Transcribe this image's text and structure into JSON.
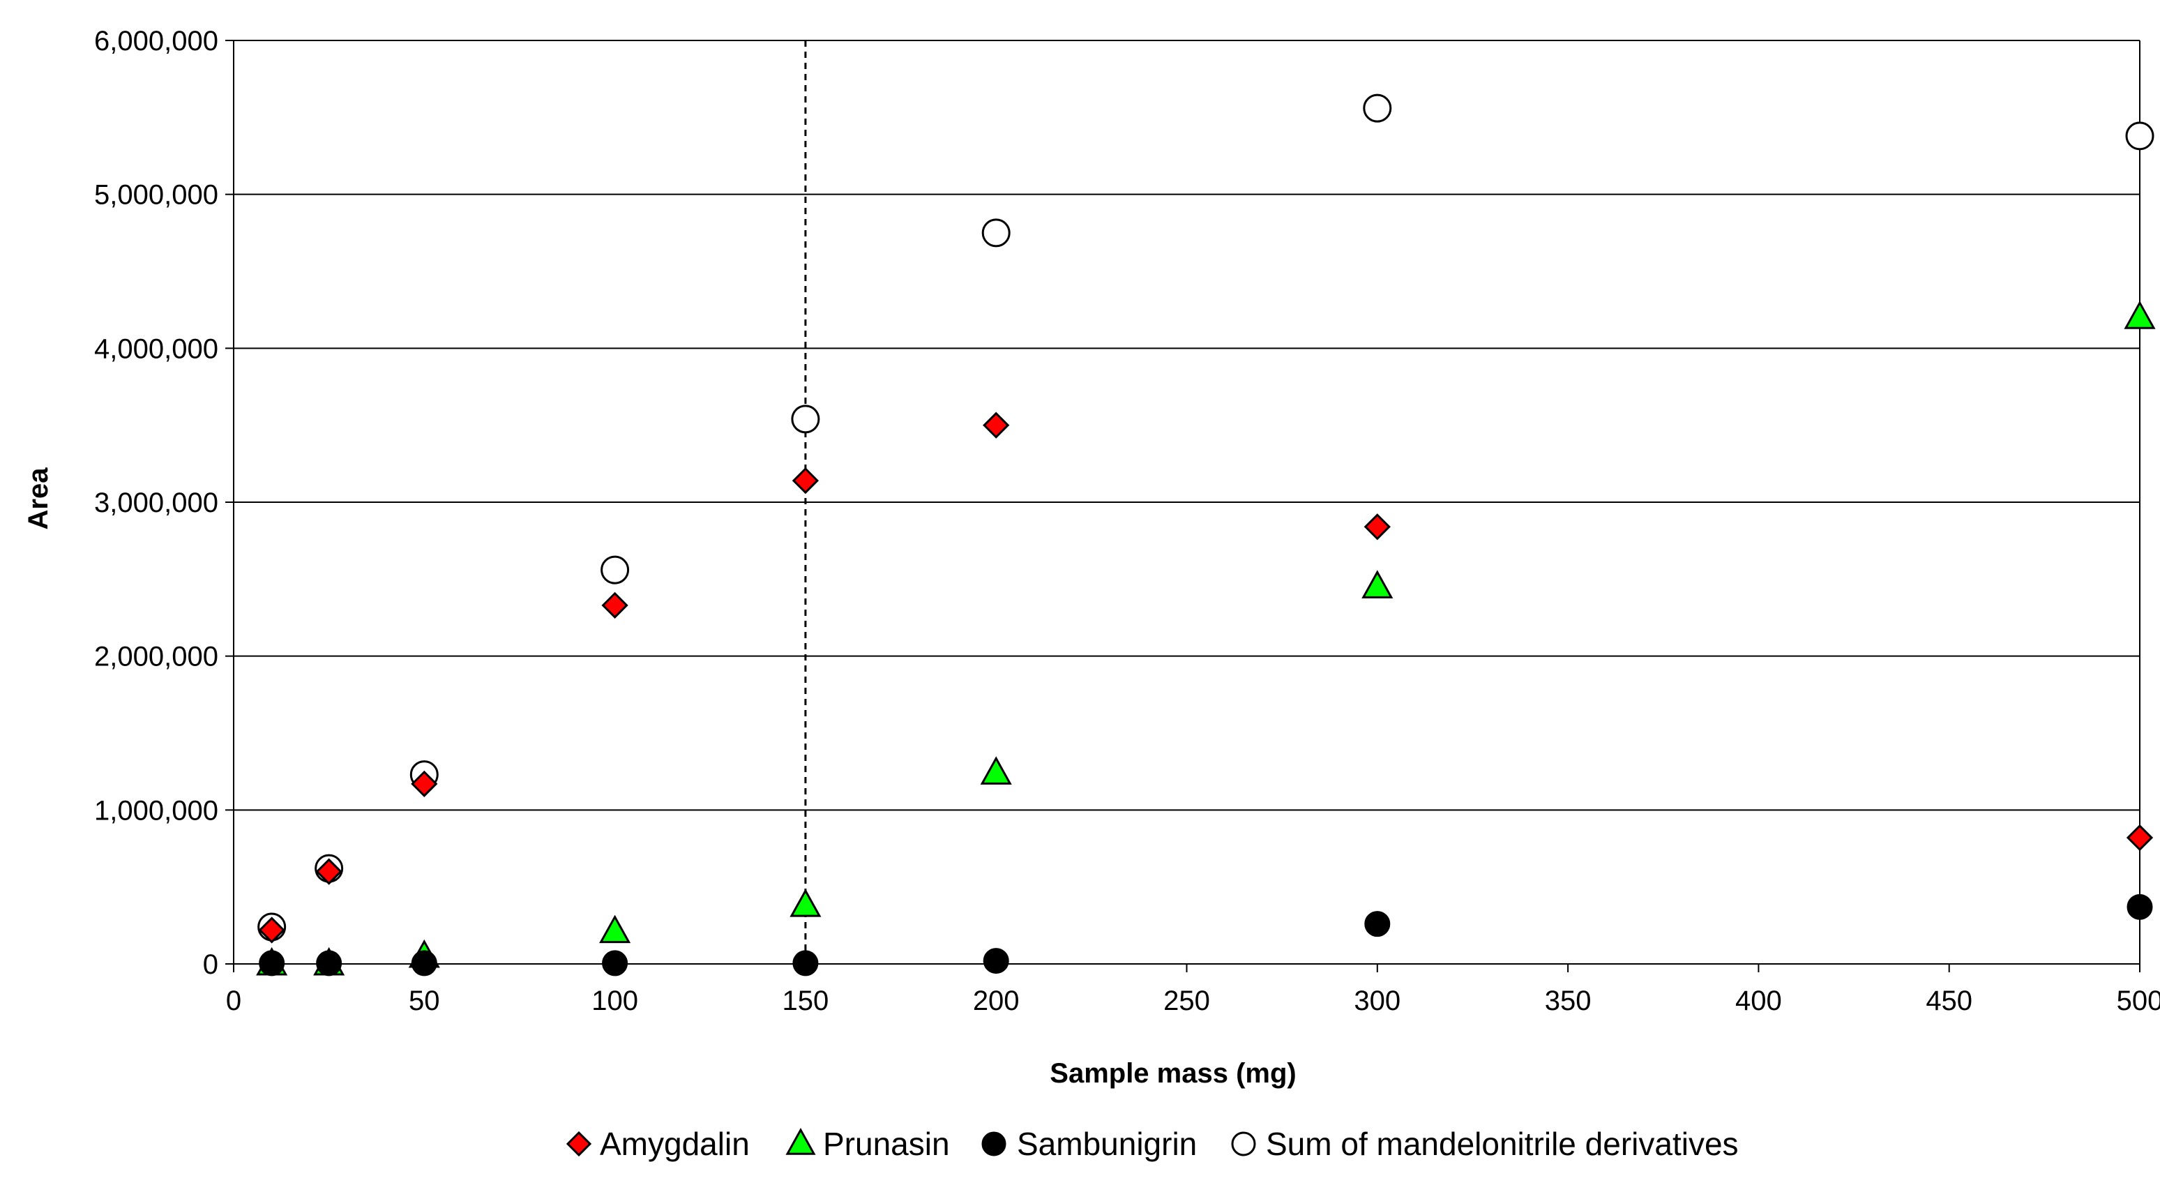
{
  "chart_data": {
    "type": "scatter",
    "title": "",
    "xlabel": "Sample mass (mg)",
    "ylabel": "Area",
    "xlim": [
      0,
      500
    ],
    "ylim": [
      0,
      6000000
    ],
    "x_ticks": [
      0,
      50,
      100,
      150,
      200,
      250,
      300,
      350,
      400,
      450,
      500
    ],
    "y_ticks": [
      0,
      1000000,
      2000000,
      3000000,
      4000000,
      5000000,
      6000000
    ],
    "x_tick_labels": [
      "0",
      "50",
      "100",
      "150",
      "200",
      "250",
      "300",
      "350",
      "400",
      "450",
      "500"
    ],
    "y_tick_labels": [
      "0",
      "1,000,000",
      "2,000,000",
      "3,000,000",
      "4,000,000",
      "5,000,000",
      "6,000,000"
    ],
    "grid": "horizontal",
    "reference_line_x": 150,
    "legend_position": "bottom",
    "series": [
      {
        "name": "Amygdalin",
        "marker": "diamond",
        "color": "#ff0000",
        "x": [
          10,
          25,
          50,
          100,
          150,
          200,
          300,
          500
        ],
        "y": [
          220000,
          600000,
          1170000,
          2330000,
          3140000,
          3500000,
          2840000,
          820000
        ]
      },
      {
        "name": "Prunasin",
        "marker": "triangle",
        "color": "#00ff00",
        "x": [
          10,
          25,
          50,
          100,
          150,
          200,
          300,
          500
        ],
        "y": [
          0,
          0,
          50000,
          210000,
          380000,
          1240000,
          2450000,
          4200000
        ]
      },
      {
        "name": "Sambunigrin",
        "marker": "circle-filled",
        "color": "#000000",
        "x": [
          10,
          25,
          50,
          100,
          150,
          200,
          300,
          500
        ],
        "y": [
          5000,
          5000,
          5000,
          5000,
          5000,
          20000,
          260000,
          370000
        ]
      },
      {
        "name": "Sum of mandelonitrile derivatives",
        "marker": "circle-open",
        "color": "#ffffff",
        "x": [
          10,
          25,
          50,
          100,
          150,
          200,
          300,
          500
        ],
        "y": [
          240000,
          620000,
          1230000,
          2560000,
          3540000,
          4750000,
          5560000,
          5380000
        ]
      }
    ]
  }
}
